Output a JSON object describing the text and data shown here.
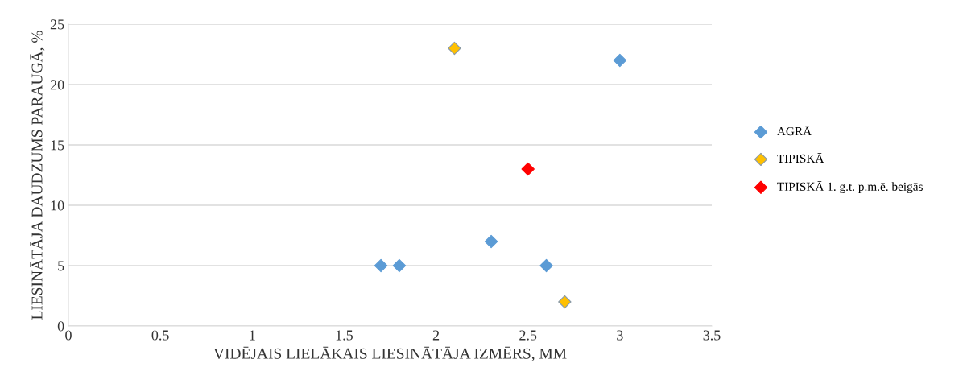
{
  "chart_data": {
    "type": "scatter",
    "xlabel": "VIDĒJAIS LIELĀKAIS LIESINĀTĀJA IZMĒRS, MM",
    "ylabel": "LIESINĀTĀJA DAUDZUMS PARAUGĀ, %",
    "series": [
      {
        "name": "AGRĀ",
        "color": "#5b9bd5",
        "x": [
          1.7,
          1.8,
          2.3,
          2.6,
          3.0
        ],
        "values": [
          5,
          5,
          7,
          5,
          22
        ]
      },
      {
        "name": "TIPISKĀ",
        "color": "#ffc000",
        "x": [
          2.1,
          2.7
        ],
        "values": [
          23,
          2
        ]
      },
      {
        "name": "TIPISKĀ 1. g.t. p.m.ē. beigās",
        "color": "#ff0000",
        "x": [
          2.5
        ],
        "values": [
          13
        ]
      }
    ],
    "xlim": [
      0,
      3.5
    ],
    "xticks": [
      0,
      {
        "value": 0.5,
        "label": "0.5"
      },
      1,
      {
        "value": 1.5,
        "label": "1.5"
      },
      2,
      {
        "value": 2.5,
        "label": "2.5"
      },
      3,
      {
        "value": 3.5,
        "label": "3.5"
      }
    ],
    "ylim": [
      0,
      25
    ],
    "yticks": [
      0,
      5,
      10,
      15,
      20,
      25
    ],
    "grid": "y",
    "legend": "right",
    "marker": "diamond"
  }
}
